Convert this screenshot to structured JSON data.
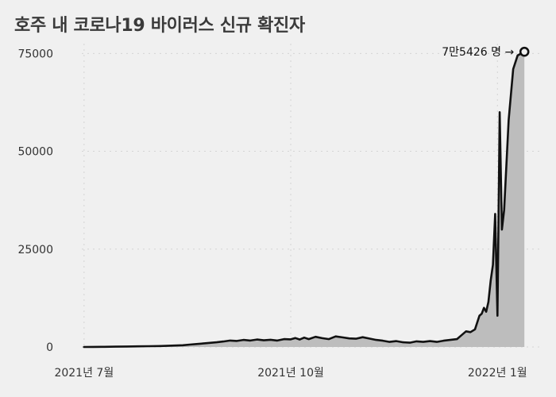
{
  "chart_data": {
    "type": "area",
    "title": "호주 내 코로나19 바이러스 신규 확진자",
    "xlabel": "",
    "ylabel": "",
    "x_tick_labels": [
      "2021년 7월",
      "2021년 10월",
      "2022년 1월"
    ],
    "x_ticks": [
      "2021-07-01",
      "2021-10-01",
      "2022-01-01"
    ],
    "x_range": [
      "2021-06-30",
      "2022-01-20"
    ],
    "y_ticks": [
      0,
      25000,
      50000,
      75000
    ],
    "ylim": [
      0,
      77500
    ],
    "grid": true,
    "colors": {
      "line": "#111111",
      "fill": "#bdbdbd",
      "grid": "#d4d4d4",
      "background": "#f0f0f0"
    },
    "annotation": {
      "text": "7만5426 명 →",
      "date": "2022-01-13",
      "value": 75426
    },
    "series": [
      {
        "points": [
          [
            "2021-07-01",
            10
          ],
          [
            "2021-07-05",
            20
          ],
          [
            "2021-07-10",
            40
          ],
          [
            "2021-07-15",
            80
          ],
          [
            "2021-07-20",
            120
          ],
          [
            "2021-07-25",
            160
          ],
          [
            "2021-07-30",
            200
          ],
          [
            "2021-08-04",
            250
          ],
          [
            "2021-08-09",
            350
          ],
          [
            "2021-08-14",
            450
          ],
          [
            "2021-08-17",
            600
          ],
          [
            "2021-08-20",
            750
          ],
          [
            "2021-08-23",
            900
          ],
          [
            "2021-08-26",
            1050
          ],
          [
            "2021-08-29",
            1200
          ],
          [
            "2021-09-01",
            1400
          ],
          [
            "2021-09-04",
            1650
          ],
          [
            "2021-09-07",
            1550
          ],
          [
            "2021-09-10",
            1800
          ],
          [
            "2021-09-13",
            1650
          ],
          [
            "2021-09-16",
            1900
          ],
          [
            "2021-09-19",
            1700
          ],
          [
            "2021-09-22",
            1850
          ],
          [
            "2021-09-25",
            1650
          ],
          [
            "2021-09-28",
            2000
          ],
          [
            "2021-10-01",
            1950
          ],
          [
            "2021-10-03",
            2300
          ],
          [
            "2021-10-05",
            1900
          ],
          [
            "2021-10-07",
            2400
          ],
          [
            "2021-10-09",
            2000
          ],
          [
            "2021-10-12",
            2600
          ],
          [
            "2021-10-15",
            2250
          ],
          [
            "2021-10-18",
            2000
          ],
          [
            "2021-10-21",
            2700
          ],
          [
            "2021-10-24",
            2450
          ],
          [
            "2021-10-27",
            2200
          ],
          [
            "2021-10-30",
            2100
          ],
          [
            "2021-11-02",
            2500
          ],
          [
            "2021-11-05",
            2150
          ],
          [
            "2021-11-08",
            1800
          ],
          [
            "2021-11-11",
            1600
          ],
          [
            "2021-11-14",
            1300
          ],
          [
            "2021-11-17",
            1500
          ],
          [
            "2021-11-20",
            1200
          ],
          [
            "2021-11-23",
            1100
          ],
          [
            "2021-11-26",
            1450
          ],
          [
            "2021-11-29",
            1300
          ],
          [
            "2021-12-02",
            1500
          ],
          [
            "2021-12-05",
            1300
          ],
          [
            "2021-12-08",
            1600
          ],
          [
            "2021-12-11",
            1800
          ],
          [
            "2021-12-14",
            2000
          ],
          [
            "2021-12-16",
            3000
          ],
          [
            "2021-12-18",
            4000
          ],
          [
            "2021-12-20",
            3800
          ],
          [
            "2021-12-22",
            4500
          ],
          [
            "2021-12-24",
            8000
          ],
          [
            "2021-12-25",
            8500
          ],
          [
            "2021-12-26",
            10000
          ],
          [
            "2021-12-27",
            9000
          ],
          [
            "2021-12-28",
            11500
          ],
          [
            "2021-12-29",
            17000
          ],
          [
            "2021-12-30",
            21000
          ],
          [
            "2021-12-31",
            34000
          ],
          [
            "2022-01-01",
            8000
          ],
          [
            "2022-01-02",
            60000
          ],
          [
            "2022-01-03",
            30000
          ],
          [
            "2022-01-04",
            35000
          ],
          [
            "2022-01-06",
            58000
          ],
          [
            "2022-01-08",
            71000
          ],
          [
            "2022-01-10",
            74500
          ],
          [
            "2022-01-13",
            75426
          ]
        ]
      }
    ]
  }
}
